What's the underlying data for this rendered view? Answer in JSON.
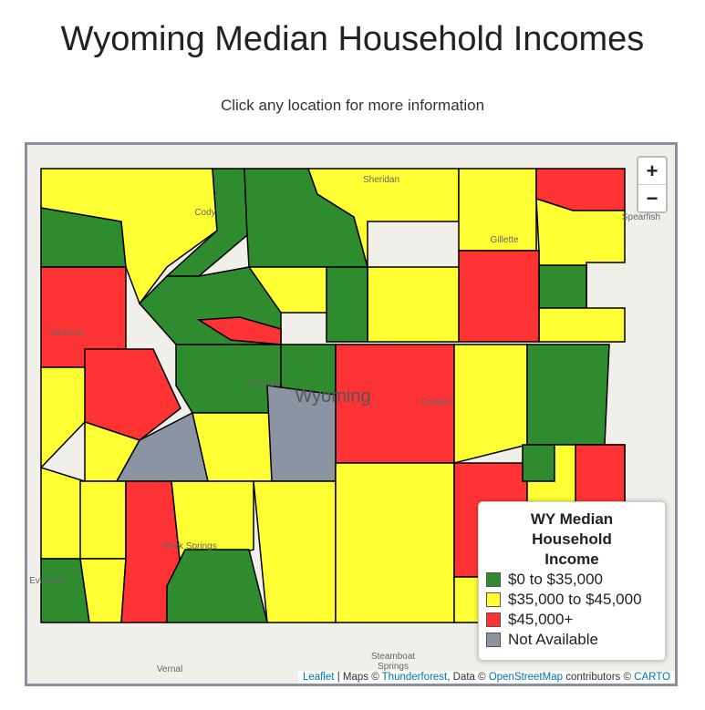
{
  "header": {
    "title": "Wyoming Median Household Incomes",
    "subtitle": "Click any location for more information"
  },
  "zoom": {
    "in": "+",
    "out": "−"
  },
  "legend": {
    "title": [
      "WY Median",
      "Household",
      "Income"
    ],
    "items": [
      {
        "label": "$0 to $35,000",
        "color": "#2e8b2e"
      },
      {
        "label": "$35,000 to $45,000",
        "color": "#ffff33"
      },
      {
        "label": "$45,000+",
        "color": "#ff3333"
      },
      {
        "label": "Not Available",
        "color": "#8a94a3"
      }
    ]
  },
  "place_labels": [
    "Sheridan",
    "Cody",
    "Gillette",
    "Jackson",
    "Riverton",
    "Wyoming",
    "Casper",
    "Evanston",
    "Rock Springs",
    "Vernal",
    "Steamboat",
    "Springs",
    "Spearfish"
  ],
  "attribution": [
    {
      "text": "Leaflet",
      "link": true
    },
    {
      "text": " | Maps © ",
      "link": false
    },
    {
      "text": "Thunderforest",
      "link": true
    },
    {
      "text": ", Data © ",
      "link": false
    },
    {
      "text": "OpenStreetMap",
      "link": true
    },
    {
      "text": " contributors © ",
      "link": false
    },
    {
      "text": "CARTO",
      "link": true
    }
  ]
}
